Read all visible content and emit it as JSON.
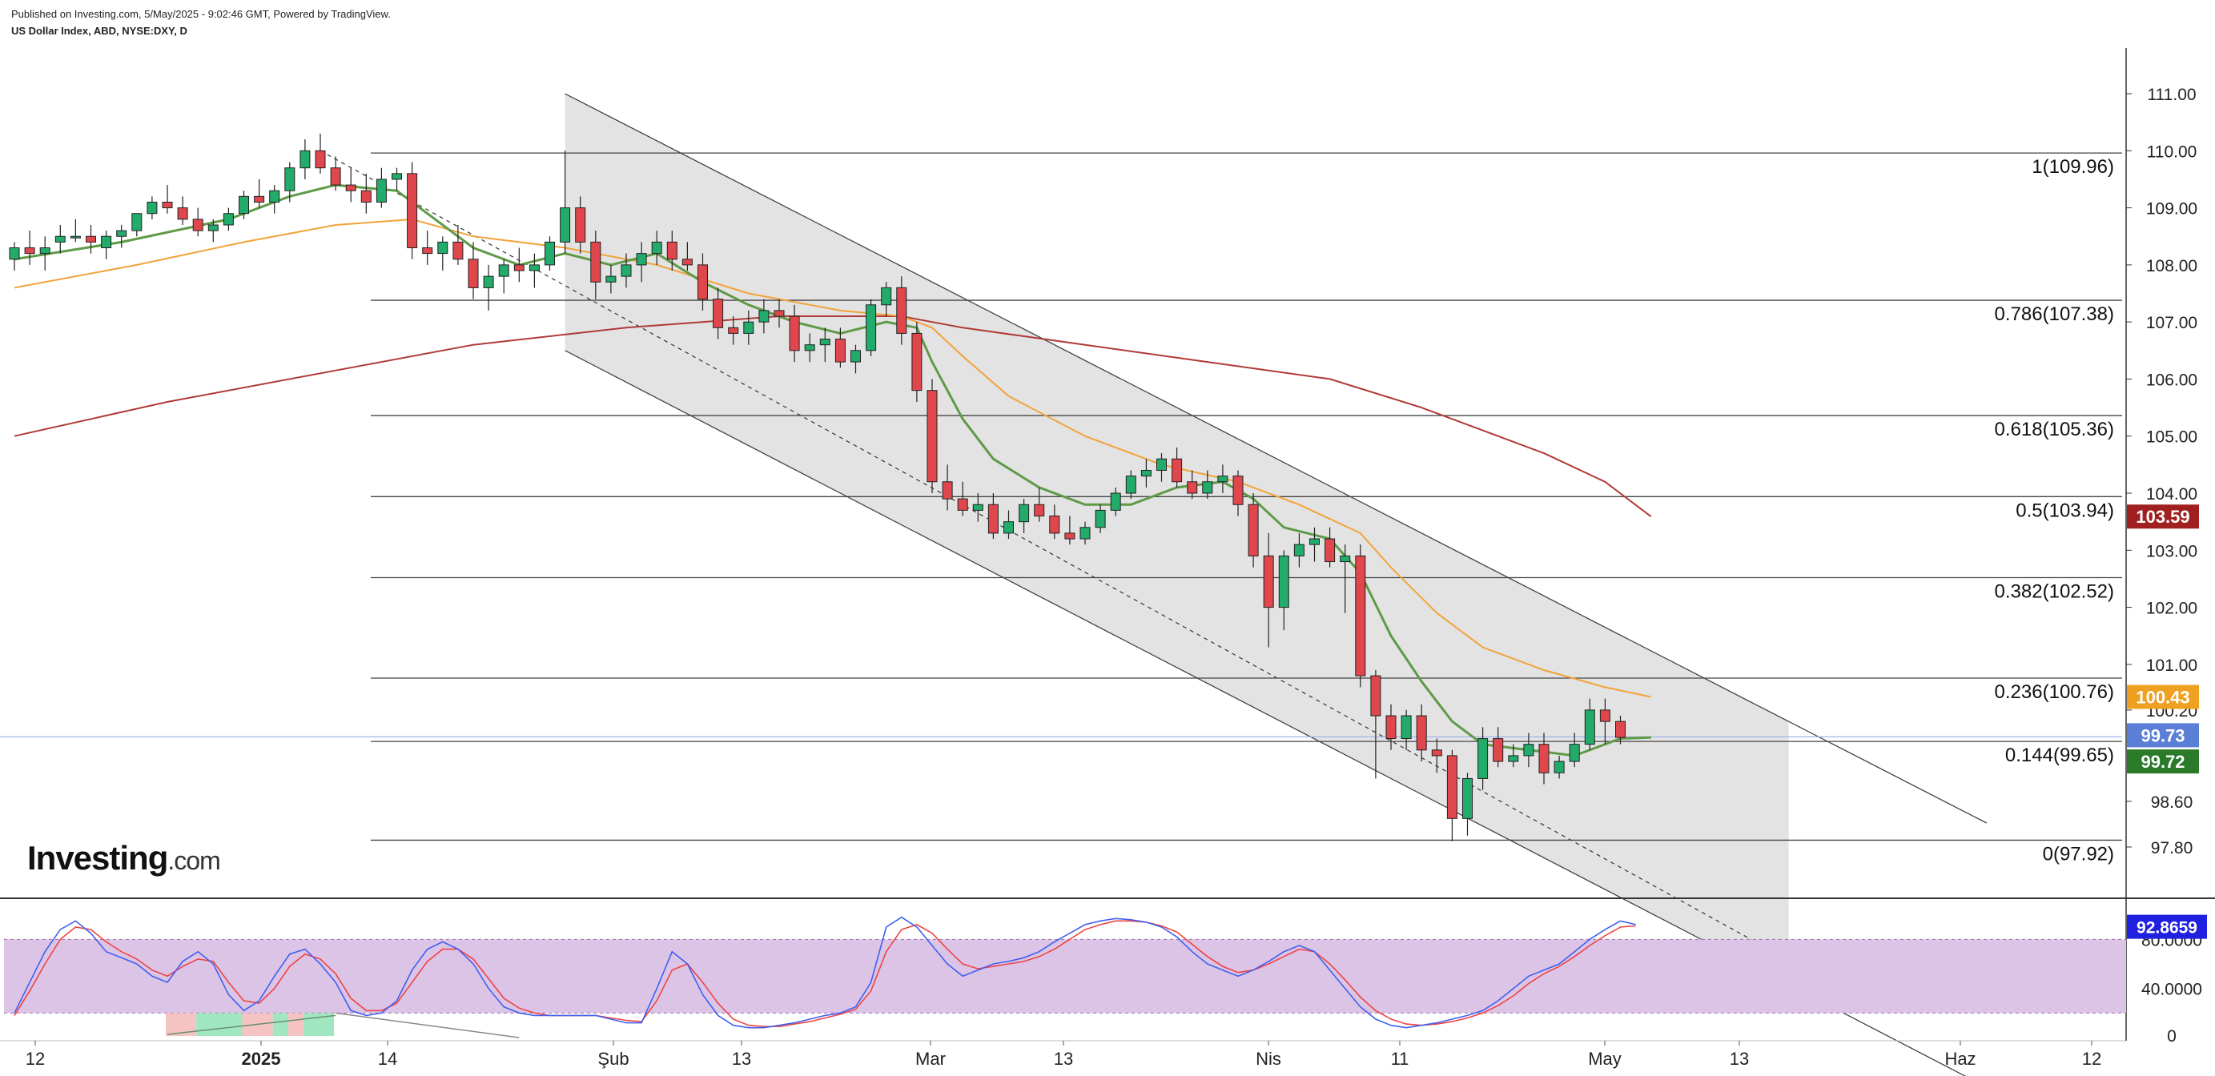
{
  "header": {
    "published": "Published on Investing.com, 5/May/2025 - 9:02:46 GMT, Powered by TradingView.",
    "symbol": "US Dollar Index, ABD, NYSE:DXY, D"
  },
  "logo": {
    "name": "Investing",
    "suffix": ".com"
  },
  "colors": {
    "up": "#22ab6a",
    "down": "#e0474c",
    "ema_fast": "#5f9a47",
    "ema_mid": "#f2a33a",
    "ma_long": "#b03a36",
    "stoch_k": "#4060f0",
    "stoch_d": "#ef4444",
    "stoch_band": "#dcc4e6",
    "channel_fill": "#e3e3e3"
  },
  "chart_data": {
    "type": "candlestick",
    "price_axis": {
      "ticks": [
        "111.00",
        "110.00",
        "109.00",
        "108.00",
        "107.00",
        "106.00",
        "105.00",
        "104.00",
        "103.00",
        "102.00",
        "101.00",
        "100.20",
        "98.60",
        "97.80"
      ],
      "range": [
        97.0,
        111.8
      ],
      "last_labels": [
        {
          "text": "103.59",
          "value": 103.59,
          "color": "#a01f1f"
        },
        {
          "text": "100.43",
          "value": 100.43,
          "color": "#f0a020"
        },
        {
          "text": "99.73",
          "value": 99.73,
          "color": "#5b7fd6"
        },
        {
          "text": "99.72",
          "value": 99.72,
          "color": "#2a7a2a"
        }
      ]
    },
    "time_axis": {
      "labels": [
        "12",
        "2025",
        "14",
        "Şub",
        "13",
        "Mar",
        "13",
        "Nis",
        "11",
        "May",
        "13",
        "Haz",
        "12"
      ],
      "bold": [
        "2025"
      ]
    },
    "fibonacci": [
      {
        "label": "1(109.96)",
        "value": 109.96
      },
      {
        "label": "0.786(107.38)",
        "value": 107.38
      },
      {
        "label": "0.618(105.36)",
        "value": 105.36
      },
      {
        "label": "0.5(103.94)",
        "value": 103.94
      },
      {
        "label": "0.382(102.52)",
        "value": 102.52
      },
      {
        "label": "0.236(100.76)",
        "value": 100.76
      },
      {
        "label": "0.144(99.65)",
        "value": 99.65
      },
      {
        "label": "0(97.92)",
        "value": 97.92
      }
    ],
    "candles": [
      {
        "o": 108.1,
        "h": 108.4,
        "l": 107.9,
        "c": 108.3
      },
      {
        "o": 108.3,
        "h": 108.6,
        "l": 108.0,
        "c": 108.2
      },
      {
        "o": 108.2,
        "h": 108.5,
        "l": 107.9,
        "c": 108.3
      },
      {
        "o": 108.4,
        "h": 108.7,
        "l": 108.2,
        "c": 108.5
      },
      {
        "o": 108.5,
        "h": 108.8,
        "l": 108.4,
        "c": 108.5
      },
      {
        "o": 108.5,
        "h": 108.7,
        "l": 108.2,
        "c": 108.4
      },
      {
        "o": 108.3,
        "h": 108.6,
        "l": 108.1,
        "c": 108.5
      },
      {
        "o": 108.5,
        "h": 108.7,
        "l": 108.3,
        "c": 108.6
      },
      {
        "o": 108.6,
        "h": 108.9,
        "l": 108.5,
        "c": 108.9
      },
      {
        "o": 108.9,
        "h": 109.2,
        "l": 108.8,
        "c": 109.1
      },
      {
        "o": 109.1,
        "h": 109.4,
        "l": 108.9,
        "c": 109.0
      },
      {
        "o": 109.0,
        "h": 109.2,
        "l": 108.7,
        "c": 108.8
      },
      {
        "o": 108.8,
        "h": 109.0,
        "l": 108.5,
        "c": 108.6
      },
      {
        "o": 108.6,
        "h": 108.8,
        "l": 108.4,
        "c": 108.7
      },
      {
        "o": 108.7,
        "h": 109.0,
        "l": 108.6,
        "c": 108.9
      },
      {
        "o": 108.9,
        "h": 109.3,
        "l": 108.8,
        "c": 109.2
      },
      {
        "o": 109.2,
        "h": 109.5,
        "l": 109.0,
        "c": 109.1
      },
      {
        "o": 109.1,
        "h": 109.4,
        "l": 108.9,
        "c": 109.3
      },
      {
        "o": 109.3,
        "h": 109.8,
        "l": 109.1,
        "c": 109.7
      },
      {
        "o": 109.7,
        "h": 110.2,
        "l": 109.5,
        "c": 110.0
      },
      {
        "o": 110.0,
        "h": 110.3,
        "l": 109.6,
        "c": 109.7
      },
      {
        "o": 109.7,
        "h": 109.9,
        "l": 109.3,
        "c": 109.4
      },
      {
        "o": 109.4,
        "h": 109.7,
        "l": 109.1,
        "c": 109.3
      },
      {
        "o": 109.3,
        "h": 109.6,
        "l": 108.9,
        "c": 109.1
      },
      {
        "o": 109.1,
        "h": 109.7,
        "l": 109.0,
        "c": 109.5
      },
      {
        "o": 109.5,
        "h": 109.7,
        "l": 109.3,
        "c": 109.6
      },
      {
        "o": 109.6,
        "h": 109.8,
        "l": 108.1,
        "c": 108.3
      },
      {
        "o": 108.3,
        "h": 108.6,
        "l": 108.0,
        "c": 108.2
      },
      {
        "o": 108.2,
        "h": 108.5,
        "l": 107.9,
        "c": 108.4
      },
      {
        "o": 108.4,
        "h": 108.7,
        "l": 108.0,
        "c": 108.1
      },
      {
        "o": 108.1,
        "h": 108.4,
        "l": 107.4,
        "c": 107.6
      },
      {
        "o": 107.6,
        "h": 108.0,
        "l": 107.2,
        "c": 107.8
      },
      {
        "o": 107.8,
        "h": 108.1,
        "l": 107.5,
        "c": 108.0
      },
      {
        "o": 108.0,
        "h": 108.3,
        "l": 107.7,
        "c": 107.9
      },
      {
        "o": 107.9,
        "h": 108.2,
        "l": 107.6,
        "c": 108.0
      },
      {
        "o": 108.0,
        "h": 108.5,
        "l": 107.9,
        "c": 108.4
      },
      {
        "o": 108.4,
        "h": 110.0,
        "l": 108.2,
        "c": 109.0
      },
      {
        "o": 109.0,
        "h": 109.2,
        "l": 108.2,
        "c": 108.4
      },
      {
        "o": 108.4,
        "h": 108.6,
        "l": 107.4,
        "c": 107.7
      },
      {
        "o": 107.7,
        "h": 108.0,
        "l": 107.5,
        "c": 107.8
      },
      {
        "o": 107.8,
        "h": 108.2,
        "l": 107.6,
        "c": 108.0
      },
      {
        "o": 108.0,
        "h": 108.4,
        "l": 107.7,
        "c": 108.2
      },
      {
        "o": 108.2,
        "h": 108.6,
        "l": 108.0,
        "c": 108.4
      },
      {
        "o": 108.4,
        "h": 108.6,
        "l": 107.9,
        "c": 108.1
      },
      {
        "o": 108.1,
        "h": 108.4,
        "l": 107.9,
        "c": 108.0
      },
      {
        "o": 108.0,
        "h": 108.2,
        "l": 107.2,
        "c": 107.4
      },
      {
        "o": 107.4,
        "h": 107.6,
        "l": 106.7,
        "c": 106.9
      },
      {
        "o": 106.9,
        "h": 107.1,
        "l": 106.6,
        "c": 106.8
      },
      {
        "o": 106.8,
        "h": 107.2,
        "l": 106.6,
        "c": 107.0
      },
      {
        "o": 107.0,
        "h": 107.4,
        "l": 106.8,
        "c": 107.2
      },
      {
        "o": 107.2,
        "h": 107.4,
        "l": 106.9,
        "c": 107.1
      },
      {
        "o": 107.1,
        "h": 107.3,
        "l": 106.3,
        "c": 106.5
      },
      {
        "o": 106.5,
        "h": 106.8,
        "l": 106.3,
        "c": 106.6
      },
      {
        "o": 106.6,
        "h": 106.9,
        "l": 106.3,
        "c": 106.7
      },
      {
        "o": 106.7,
        "h": 106.9,
        "l": 106.2,
        "c": 106.3
      },
      {
        "o": 106.3,
        "h": 106.6,
        "l": 106.1,
        "c": 106.5
      },
      {
        "o": 106.5,
        "h": 107.4,
        "l": 106.4,
        "c": 107.3
      },
      {
        "o": 107.3,
        "h": 107.7,
        "l": 107.1,
        "c": 107.6
      },
      {
        "o": 107.6,
        "h": 107.8,
        "l": 106.6,
        "c": 106.8
      },
      {
        "o": 106.8,
        "h": 107.0,
        "l": 105.6,
        "c": 105.8
      },
      {
        "o": 105.8,
        "h": 106.0,
        "l": 104.0,
        "c": 104.2
      },
      {
        "o": 104.2,
        "h": 104.5,
        "l": 103.7,
        "c": 103.9
      },
      {
        "o": 103.9,
        "h": 104.2,
        "l": 103.6,
        "c": 103.7
      },
      {
        "o": 103.7,
        "h": 104.0,
        "l": 103.5,
        "c": 103.8
      },
      {
        "o": 103.8,
        "h": 104.0,
        "l": 103.2,
        "c": 103.3
      },
      {
        "o": 103.3,
        "h": 103.7,
        "l": 103.2,
        "c": 103.5
      },
      {
        "o": 103.5,
        "h": 103.9,
        "l": 103.3,
        "c": 103.8
      },
      {
        "o": 103.8,
        "h": 104.1,
        "l": 103.5,
        "c": 103.6
      },
      {
        "o": 103.6,
        "h": 103.8,
        "l": 103.2,
        "c": 103.3
      },
      {
        "o": 103.3,
        "h": 103.6,
        "l": 103.1,
        "c": 103.2
      },
      {
        "o": 103.2,
        "h": 103.5,
        "l": 103.1,
        "c": 103.4
      },
      {
        "o": 103.4,
        "h": 103.8,
        "l": 103.3,
        "c": 103.7
      },
      {
        "o": 103.7,
        "h": 104.1,
        "l": 103.6,
        "c": 104.0
      },
      {
        "o": 104.0,
        "h": 104.4,
        "l": 103.9,
        "c": 104.3
      },
      {
        "o": 104.3,
        "h": 104.6,
        "l": 104.1,
        "c": 104.4
      },
      {
        "o": 104.4,
        "h": 104.7,
        "l": 104.2,
        "c": 104.6
      },
      {
        "o": 104.6,
        "h": 104.8,
        "l": 104.1,
        "c": 104.2
      },
      {
        "o": 104.2,
        "h": 104.4,
        "l": 103.9,
        "c": 104.0
      },
      {
        "o": 104.0,
        "h": 104.4,
        "l": 103.9,
        "c": 104.2
      },
      {
        "o": 104.2,
        "h": 104.5,
        "l": 104.0,
        "c": 104.3
      },
      {
        "o": 104.3,
        "h": 104.4,
        "l": 103.6,
        "c": 103.8
      },
      {
        "o": 103.8,
        "h": 104.0,
        "l": 102.7,
        "c": 102.9
      },
      {
        "o": 102.9,
        "h": 103.3,
        "l": 101.3,
        "c": 102.0
      },
      {
        "o": 102.0,
        "h": 103.0,
        "l": 101.6,
        "c": 102.9
      },
      {
        "o": 102.9,
        "h": 103.3,
        "l": 102.7,
        "c": 103.1
      },
      {
        "o": 103.1,
        "h": 103.4,
        "l": 102.8,
        "c": 103.2
      },
      {
        "o": 103.2,
        "h": 103.4,
        "l": 102.7,
        "c": 102.8
      },
      {
        "o": 102.8,
        "h": 103.1,
        "l": 101.9,
        "c": 102.9
      },
      {
        "o": 102.9,
        "h": 103.1,
        "l": 100.6,
        "c": 100.8
      },
      {
        "o": 100.8,
        "h": 100.9,
        "l": 99.0,
        "c": 100.1
      },
      {
        "o": 100.1,
        "h": 100.3,
        "l": 99.5,
        "c": 99.7
      },
      {
        "o": 99.7,
        "h": 100.2,
        "l": 99.5,
        "c": 100.1
      },
      {
        "o": 100.1,
        "h": 100.3,
        "l": 99.3,
        "c": 99.5
      },
      {
        "o": 99.5,
        "h": 99.7,
        "l": 99.1,
        "c": 99.4
      },
      {
        "o": 99.4,
        "h": 99.5,
        "l": 97.9,
        "c": 98.3
      },
      {
        "o": 98.3,
        "h": 99.1,
        "l": 98.0,
        "c": 99.0
      },
      {
        "o": 99.0,
        "h": 99.9,
        "l": 98.8,
        "c": 99.7
      },
      {
        "o": 99.7,
        "h": 99.9,
        "l": 99.2,
        "c": 99.3
      },
      {
        "o": 99.3,
        "h": 99.6,
        "l": 99.2,
        "c": 99.4
      },
      {
        "o": 99.4,
        "h": 99.8,
        "l": 99.2,
        "c": 99.6
      },
      {
        "o": 99.6,
        "h": 99.8,
        "l": 98.9,
        "c": 99.1
      },
      {
        "o": 99.1,
        "h": 99.4,
        "l": 99.0,
        "c": 99.3
      },
      {
        "o": 99.3,
        "h": 99.8,
        "l": 99.2,
        "c": 99.6
      },
      {
        "o": 99.6,
        "h": 100.4,
        "l": 99.5,
        "c": 100.2
      },
      {
        "o": 100.2,
        "h": 100.4,
        "l": 99.6,
        "c": 100.0
      },
      {
        "o": 100.0,
        "h": 100.1,
        "l": 99.6,
        "c": 99.72
      }
    ],
    "ema_fast": [
      [
        0,
        108.1
      ],
      [
        7,
        108.4
      ],
      [
        14,
        108.8
      ],
      [
        18,
        109.2
      ],
      [
        21,
        109.4
      ],
      [
        25,
        109.3
      ],
      [
        27,
        108.9
      ],
      [
        30,
        108.3
      ],
      [
        33,
        108.0
      ],
      [
        36,
        108.2
      ],
      [
        39,
        108.0
      ],
      [
        42,
        108.2
      ],
      [
        45,
        107.7
      ],
      [
        48,
        107.3
      ],
      [
        51,
        107.0
      ],
      [
        54,
        106.8
      ],
      [
        57,
        107.0
      ],
      [
        59,
        106.9
      ],
      [
        60,
        106.3
      ],
      [
        62,
        105.3
      ],
      [
        64,
        104.6
      ],
      [
        67,
        104.1
      ],
      [
        70,
        103.8
      ],
      [
        73,
        103.8
      ],
      [
        76,
        104.1
      ],
      [
        79,
        104.2
      ],
      [
        81,
        103.9
      ],
      [
        83,
        103.4
      ],
      [
        86,
        103.2
      ],
      [
        88,
        102.6
      ],
      [
        90,
        101.5
      ],
      [
        92,
        100.7
      ],
      [
        94,
        100.0
      ],
      [
        96,
        99.6
      ],
      [
        99,
        99.5
      ],
      [
        102,
        99.4
      ],
      [
        105,
        99.7
      ],
      [
        107,
        99.72
      ]
    ],
    "ema_mid": [
      [
        0,
        107.6
      ],
      [
        8,
        108.0
      ],
      [
        15,
        108.4
      ],
      [
        21,
        108.7
      ],
      [
        26,
        108.8
      ],
      [
        30,
        108.5
      ],
      [
        36,
        108.3
      ],
      [
        42,
        108.0
      ],
      [
        48,
        107.5
      ],
      [
        54,
        107.2
      ],
      [
        58,
        107.1
      ],
      [
        60,
        106.9
      ],
      [
        62,
        106.4
      ],
      [
        65,
        105.7
      ],
      [
        70,
        105.0
      ],
      [
        75,
        104.5
      ],
      [
        80,
        104.2
      ],
      [
        84,
        103.8
      ],
      [
        88,
        103.3
      ],
      [
        90,
        102.7
      ],
      [
        93,
        101.9
      ],
      [
        96,
        101.3
      ],
      [
        100,
        100.9
      ],
      [
        104,
        100.6
      ],
      [
        107,
        100.43
      ]
    ],
    "ma_long": [
      [
        0,
        105.0
      ],
      [
        10,
        105.6
      ],
      [
        20,
        106.1
      ],
      [
        30,
        106.6
      ],
      [
        40,
        106.9
      ],
      [
        50,
        107.1
      ],
      [
        58,
        107.1
      ],
      [
        62,
        106.9
      ],
      [
        70,
        106.6
      ],
      [
        78,
        106.3
      ],
      [
        86,
        106.0
      ],
      [
        92,
        105.5
      ],
      [
        96,
        105.1
      ],
      [
        100,
        104.7
      ],
      [
        104,
        104.2
      ],
      [
        107,
        103.59
      ]
    ],
    "channel": {
      "upper": [
        [
          36,
          111.0
        ],
        [
          108,
          101.1
        ]
      ],
      "lower": [
        [
          36,
          106.5
        ],
        [
          108,
          96.5
        ]
      ],
      "mid_dashed": [
        [
          20,
          110.0
        ],
        [
          108,
          97.0
        ]
      ],
      "right_edge_index": 116
    },
    "stochastic": {
      "range": [
        0,
        105
      ],
      "ticks": [
        "80.0000",
        "40.0000",
        "0"
      ],
      "overbought": 80,
      "oversold": 20,
      "last_labels": [
        {
          "text": "92.8659",
          "value": 92.8659,
          "color": "#2020e0"
        }
      ],
      "k": [
        20,
        45,
        70,
        88,
        95,
        85,
        70,
        65,
        60,
        50,
        45,
        62,
        70,
        60,
        35,
        22,
        30,
        50,
        68,
        72,
        60,
        45,
        22,
        18,
        20,
        30,
        55,
        72,
        78,
        72,
        60,
        40,
        25,
        20,
        18,
        18,
        18,
        18,
        18,
        15,
        12,
        12,
        40,
        70,
        60,
        35,
        18,
        10,
        8,
        8,
        10,
        12,
        15,
        18,
        20,
        25,
        45,
        90,
        98,
        90,
        75,
        60,
        50,
        55,
        60,
        62,
        65,
        70,
        78,
        85,
        92,
        95,
        97,
        96,
        94,
        90,
        82,
        70,
        60,
        55,
        50,
        55,
        62,
        70,
        75,
        70,
        55,
        40,
        25,
        15,
        10,
        8,
        10,
        12,
        15,
        18,
        22,
        30,
        40,
        50,
        55,
        60,
        70,
        80,
        88,
        95,
        92
      ],
      "d": [
        18,
        38,
        60,
        80,
        90,
        88,
        78,
        70,
        64,
        55,
        50,
        58,
        64,
        62,
        45,
        30,
        28,
        40,
        58,
        68,
        64,
        52,
        32,
        22,
        22,
        28,
        45,
        62,
        72,
        72,
        64,
        48,
        32,
        24,
        20,
        18,
        18,
        18,
        18,
        16,
        14,
        13,
        30,
        55,
        60,
        45,
        28,
        15,
        10,
        9,
        9,
        11,
        13,
        16,
        19,
        23,
        38,
        70,
        88,
        92,
        85,
        72,
        60,
        56,
        58,
        60,
        62,
        66,
        72,
        80,
        88,
        92,
        95,
        95,
        94,
        91,
        86,
        76,
        66,
        58,
        53,
        55,
        60,
        66,
        72,
        70,
        60,
        47,
        33,
        22,
        15,
        11,
        10,
        11,
        13,
        16,
        20,
        26,
        34,
        44,
        52,
        58,
        66,
        75,
        83,
        90,
        91
      ]
    }
  }
}
